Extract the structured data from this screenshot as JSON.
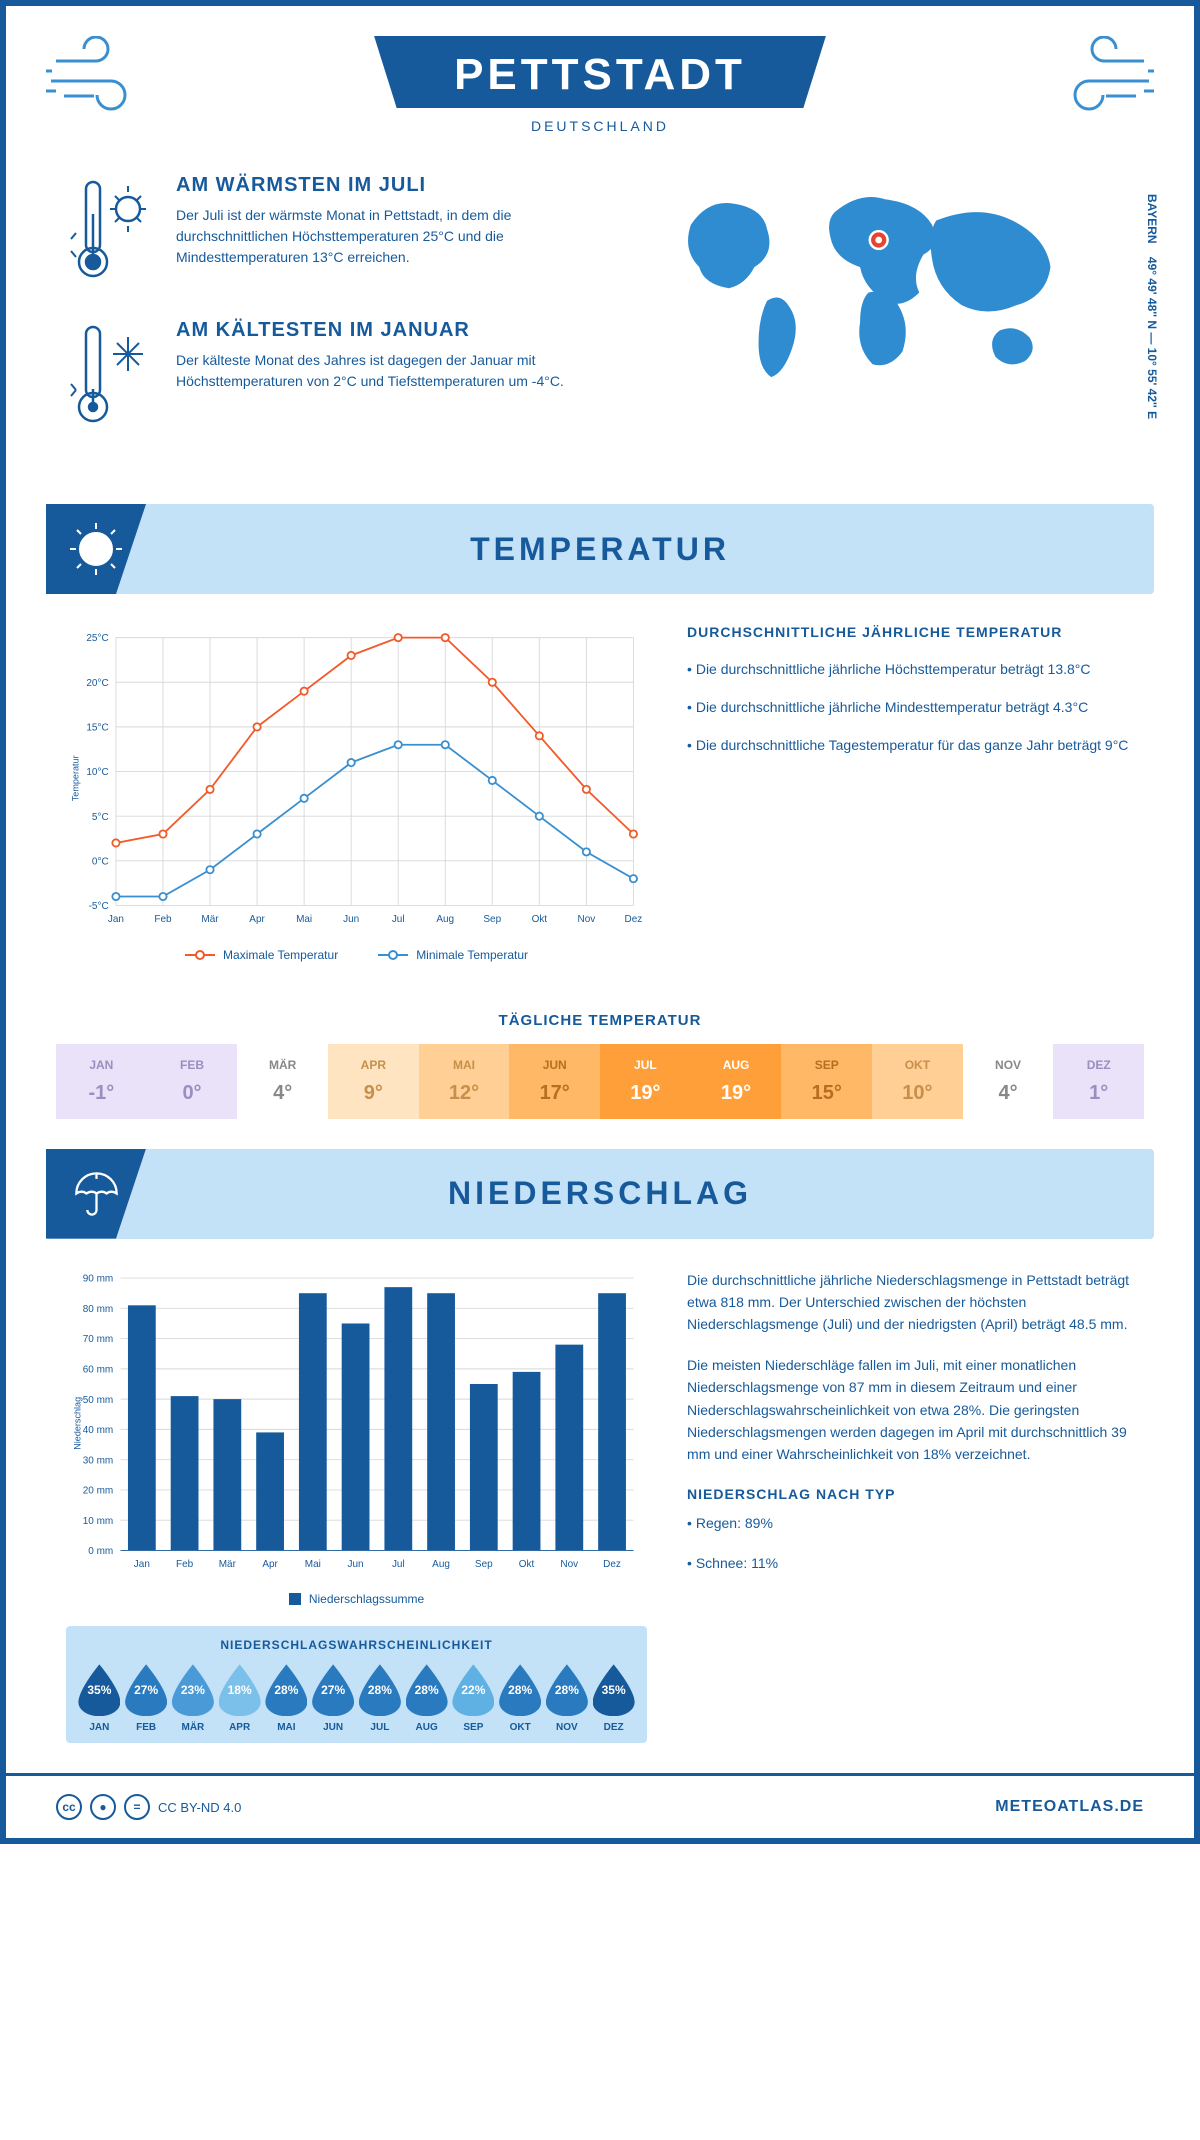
{
  "header": {
    "city": "PETTSTADT",
    "country": "DEUTSCHLAND",
    "coords": "49° 49' 48'' N — 10° 55' 42'' E",
    "region": "BAYERN"
  },
  "colors": {
    "primary": "#165a9b",
    "accent_light": "#c3e1f7",
    "accent_mid": "#3a8fd0",
    "line_max": "#f15a29",
    "line_min": "#3a8fd0",
    "bar": "#165a9b",
    "grid": "#d0d0d0",
    "white": "#ffffff"
  },
  "facts": {
    "warm": {
      "title": "AM WÄRMSTEN IM JULI",
      "text": "Der Juli ist der wärmste Monat in Pettstadt, in dem die durchschnittlichen Höchsttemperaturen 25°C und die Mindesttemperaturen 13°C erreichen."
    },
    "cold": {
      "title": "AM KÄLTESTEN IM JANUAR",
      "text": "Der kälteste Monat des Jahres ist dagegen der Januar mit Höchsttemperaturen von 2°C und Tiefsttemperaturen um -4°C."
    }
  },
  "sections": {
    "temp_title": "TEMPERATUR",
    "precip_title": "NIEDERSCHLAG"
  },
  "temp_chart": {
    "type": "line",
    "months": [
      "Jan",
      "Feb",
      "Mär",
      "Apr",
      "Mai",
      "Jun",
      "Jul",
      "Aug",
      "Sep",
      "Okt",
      "Nov",
      "Dez"
    ],
    "max_series": [
      2,
      3,
      8,
      15,
      19,
      23,
      25,
      25,
      20,
      14,
      8,
      3
    ],
    "min_series": [
      -4,
      -4,
      -1,
      3,
      7,
      11,
      13,
      13,
      9,
      5,
      1,
      -2
    ],
    "ylim": [
      -5,
      25
    ],
    "ytick_step": 5,
    "ylabel": "Temperatur",
    "legend_max": "Maximale Temperatur",
    "legend_min": "Minimale Temperatur",
    "max_color": "#f15a29",
    "min_color": "#3a8fd0",
    "grid_color": "#d8d8d8",
    "line_width": 2,
    "marker": "circle"
  },
  "temp_desc": {
    "heading": "DURCHSCHNITTLICHE JÄHRLICHE TEMPERATUR",
    "b1": "• Die durchschnittliche jährliche Höchsttemperatur beträgt 13.8°C",
    "b2": "• Die durchschnittliche jährliche Mindesttemperatur beträgt 4.3°C",
    "b3": "• Die durchschnittliche Tagestemperatur für das ganze Jahr beträgt 9°C"
  },
  "daily_temp": {
    "title": "TÄGLICHE TEMPERATUR",
    "months": [
      "JAN",
      "FEB",
      "MÄR",
      "APR",
      "MAI",
      "JUN",
      "JUL",
      "AUG",
      "SEP",
      "OKT",
      "NOV",
      "DEZ"
    ],
    "values": [
      "-1°",
      "0°",
      "4°",
      "9°",
      "12°",
      "17°",
      "19°",
      "19°",
      "15°",
      "10°",
      "4°",
      "1°"
    ],
    "bg_colors": [
      "#e9e2f8",
      "#e9e2f8",
      "#ffffff",
      "#ffe4c2",
      "#ffcf95",
      "#ffb865",
      "#ff9f39",
      "#ff9f39",
      "#ffb865",
      "#ffcf95",
      "#ffffff",
      "#e9e2f8"
    ],
    "text_colors": [
      "#9a8fc0",
      "#9a8fc0",
      "#888888",
      "#c78f4a",
      "#c78f4a",
      "#b76f1f",
      "#ffffff",
      "#ffffff",
      "#b76f1f",
      "#c78f4a",
      "#888888",
      "#9a8fc0"
    ]
  },
  "precip_chart": {
    "type": "bar",
    "months": [
      "Jan",
      "Feb",
      "Mär",
      "Apr",
      "Mai",
      "Jun",
      "Jul",
      "Aug",
      "Sep",
      "Okt",
      "Nov",
      "Dez"
    ],
    "values": [
      81,
      51,
      50,
      39,
      85,
      75,
      87,
      85,
      55,
      59,
      68,
      85
    ],
    "ylim": [
      0,
      90
    ],
    "ytick_step": 10,
    "ylabel": "Niederschlag",
    "legend": "Niederschlagssumme",
    "bar_color": "#165a9b",
    "grid_color": "#d8d8d8",
    "bar_width": 0.65
  },
  "precip_desc": {
    "p1": "Die durchschnittliche jährliche Niederschlagsmenge in Pettstadt beträgt etwa 818 mm. Der Unterschied zwischen der höchsten Niederschlagsmenge (Juli) und der niedrigsten (April) beträgt 48.5 mm.",
    "p2": "Die meisten Niederschläge fallen im Juli, mit einer monatlichen Niederschlagsmenge von 87 mm in diesem Zeitraum und einer Niederschlagswahrscheinlichkeit von etwa 28%. Die geringsten Niederschlagsmengen werden dagegen im April mit durchschnittlich 39 mm und einer Wahrscheinlichkeit von 18% verzeichnet.",
    "type_heading": "NIEDERSCHLAG NACH TYP",
    "type_b1": "• Regen: 89%",
    "type_b2": "• Schnee: 11%"
  },
  "prob": {
    "title": "NIEDERSCHLAGSWAHRSCHEINLICHKEIT",
    "months": [
      "JAN",
      "FEB",
      "MÄR",
      "APR",
      "MAI",
      "JUN",
      "JUL",
      "AUG",
      "SEP",
      "OKT",
      "NOV",
      "DEZ"
    ],
    "values": [
      "35%",
      "27%",
      "23%",
      "18%",
      "28%",
      "27%",
      "28%",
      "28%",
      "22%",
      "28%",
      "28%",
      "35%"
    ],
    "colors": [
      "#165a9b",
      "#2a7ac0",
      "#4b9ad8",
      "#7bc0eb",
      "#2a7ac0",
      "#2a7ac0",
      "#2a7ac0",
      "#2a7ac0",
      "#5fb0e3",
      "#2a7ac0",
      "#2a7ac0",
      "#165a9b"
    ]
  },
  "footer": {
    "license": "CC BY-ND 4.0",
    "brand": "METEOATLAS.DE"
  }
}
